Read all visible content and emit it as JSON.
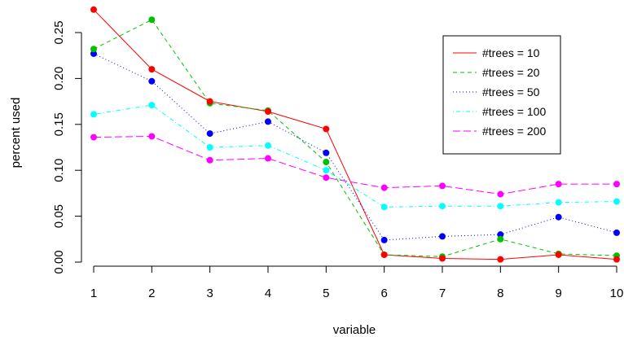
{
  "chart_data": {
    "type": "line",
    "xlabel": "variable",
    "ylabel": "percent used",
    "x": [
      1,
      2,
      3,
      4,
      5,
      6,
      7,
      8,
      9,
      10
    ],
    "xlim": [
      1,
      10
    ],
    "ylim": [
      0,
      0.25
    ],
    "yticks": [
      "0.00",
      "0.05",
      "0.10",
      "0.15",
      "0.20",
      "0.25"
    ],
    "xticks": [
      "1",
      "2",
      "3",
      "4",
      "5",
      "6",
      "7",
      "8",
      "9",
      "10"
    ],
    "grid": false,
    "legend_position": "top-right",
    "series": [
      {
        "name": "#trees = 10",
        "color": "#ff0000",
        "dash": "solid",
        "values": [
          0.275,
          0.21,
          0.175,
          0.164,
          0.145,
          0.008,
          0.004,
          0.003,
          0.008,
          0.003
        ]
      },
      {
        "name": "#trees = 20",
        "color": "#00c000",
        "dash": "dashed",
        "values": [
          0.232,
          0.264,
          0.173,
          0.165,
          0.109,
          0.008,
          0.006,
          0.025,
          0.009,
          0.007
        ]
      },
      {
        "name": "#trees = 50",
        "color": "#0000ff",
        "dash": "dotted",
        "values": [
          0.227,
          0.197,
          0.14,
          0.153,
          0.119,
          0.024,
          0.028,
          0.03,
          0.049,
          0.032
        ]
      },
      {
        "name": "#trees = 100",
        "color": "#00ffff",
        "dash": "dotdash",
        "values": [
          0.161,
          0.171,
          0.125,
          0.127,
          0.1,
          0.06,
          0.061,
          0.061,
          0.065,
          0.066
        ]
      },
      {
        "name": "#trees = 200",
        "color": "#ff00ff",
        "dash": "longdash",
        "values": [
          0.136,
          0.137,
          0.111,
          0.113,
          0.092,
          0.081,
          0.083,
          0.074,
          0.085,
          0.085
        ]
      }
    ]
  }
}
